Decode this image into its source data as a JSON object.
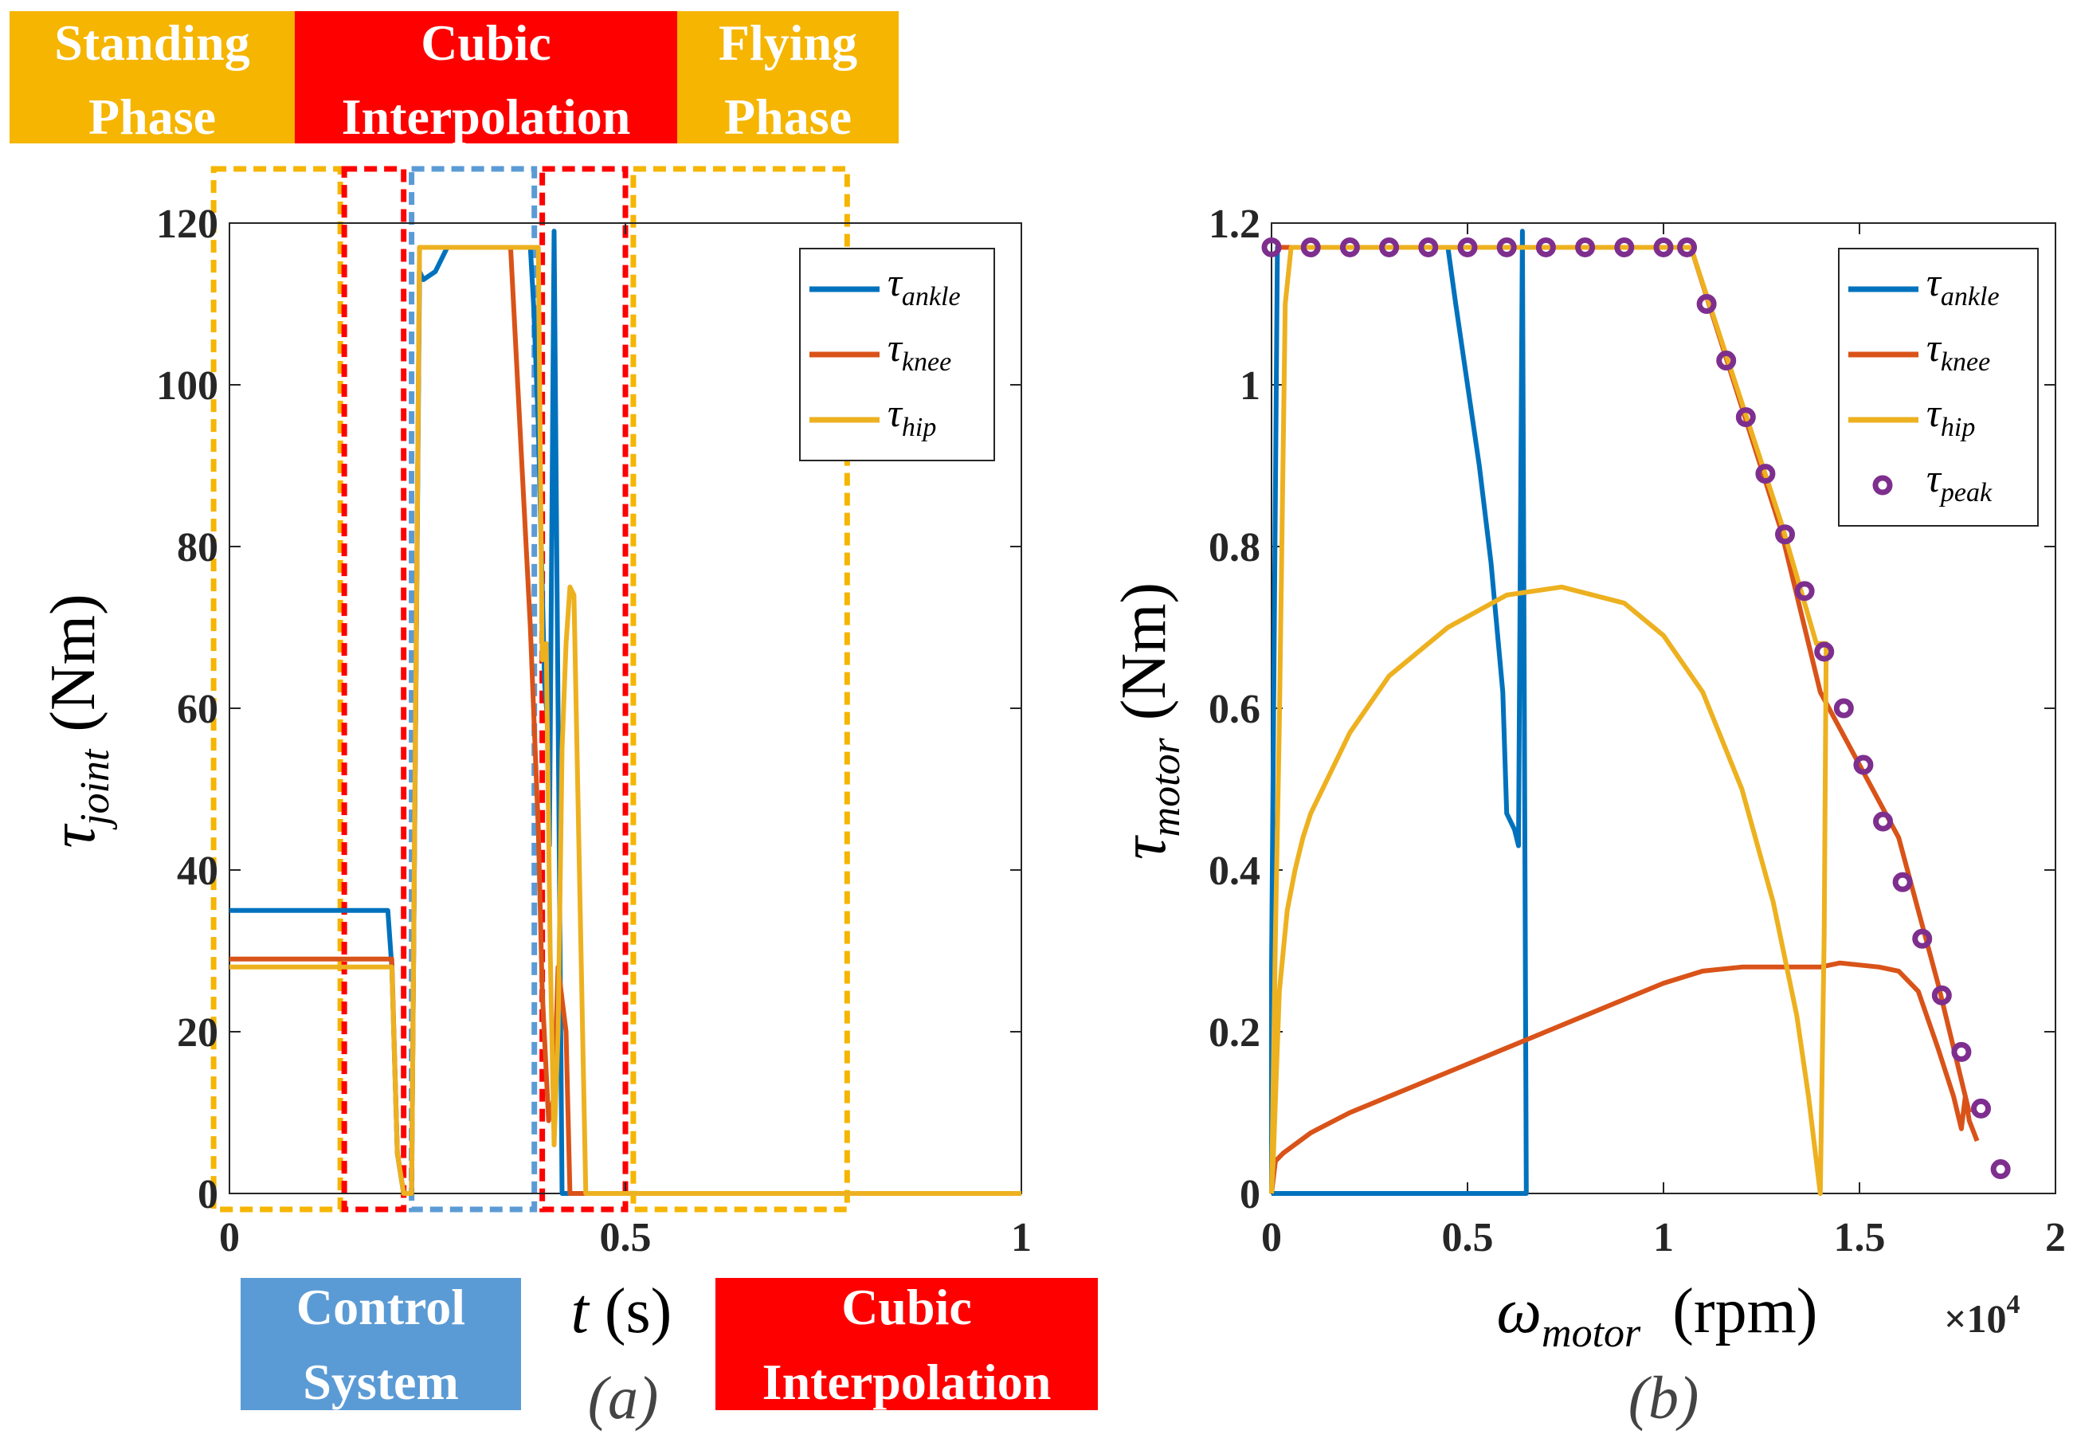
{
  "banners_top": [
    {
      "line1": "Standing",
      "line2": "Phase",
      "color": "#F5B500"
    },
    {
      "line1": "Cubic",
      "line2": "Interpolation",
      "color": "#FF0000"
    },
    {
      "line1": "Flying",
      "line2": "Phase",
      "color": "#F5B500"
    }
  ],
  "banners_bottom": [
    {
      "line1": "Control",
      "line2": "System",
      "color": "#5B9BD5"
    },
    {
      "line1": "Cubic",
      "line2": "Interpolation",
      "color": "#FF0000"
    }
  ],
  "colors": {
    "ankle": "#0072BD",
    "knee": "#D95319",
    "hip": "#EDB120",
    "peak": "#7E2F8E"
  },
  "chart_data": [
    {
      "type": "line",
      "caption": "(a)",
      "ylabel": {
        "symbol": "τ",
        "sub": "joint",
        "unit": "(Nm)"
      },
      "xlabel": {
        "symbol": "t",
        "unit": "(s)"
      },
      "xlim": [
        0,
        1
      ],
      "ylim": [
        0,
        120
      ],
      "xticks": [
        {
          "v": 0,
          "label": "0"
        },
        {
          "v": 0.5,
          "label": "0.5"
        },
        {
          "v": 1,
          "label": "1"
        }
      ],
      "yticks": [
        {
          "v": 0,
          "label": "0"
        },
        {
          "v": 20,
          "label": "20"
        },
        {
          "v": 40,
          "label": "40"
        },
        {
          "v": 60,
          "label": "60"
        },
        {
          "v": 80,
          "label": "80"
        },
        {
          "v": 100,
          "label": "100"
        },
        {
          "v": 120,
          "label": "120"
        }
      ],
      "legend": [
        {
          "symbol": "τ",
          "sub": "ankle",
          "key": "ankle"
        },
        {
          "symbol": "τ",
          "sub": "knee",
          "key": "knee"
        },
        {
          "symbol": "τ",
          "sub": "hip",
          "key": "hip"
        }
      ],
      "phase_boxes": [
        {
          "x0": -0.02,
          "x1": 0.14,
          "color": "#F5B500"
        },
        {
          "x0": 0.145,
          "x1": 0.22,
          "color": "#FF0000"
        },
        {
          "x0": 0.23,
          "x1": 0.385,
          "color": "#5B9BD5"
        },
        {
          "x0": 0.395,
          "x1": 0.5,
          "color": "#FF0000"
        },
        {
          "x0": 0.51,
          "x1": 0.78,
          "color": "#F5B500"
        }
      ],
      "series": [
        {
          "key": "ankle",
          "x": [
            0,
            0.2,
            0.205,
            0.212,
            0.22,
            0.23,
            0.24,
            0.245,
            0.26,
            0.275,
            0.29,
            0.38,
            0.384,
            0.39,
            0.395,
            0.398,
            0.402,
            0.404,
            0.41,
            0.42,
            0.5,
            0.5,
            1
          ],
          "y": [
            35,
            35,
            28,
            5,
            0,
            0,
            114,
            113,
            114,
            117,
            117,
            117,
            110,
            95,
            75,
            63,
            58,
            43,
            119,
            0,
            0,
            0,
            0
          ]
        },
        {
          "key": "knee",
          "x": [
            0,
            0.205,
            0.212,
            0.22,
            0.23,
            0.24,
            0.26,
            0.34,
            0.355,
            0.38,
            0.39,
            0.395,
            0.403,
            0.41,
            0.415,
            0.425,
            0.43,
            0.48,
            1
          ],
          "y": [
            29,
            29,
            5,
            0,
            0,
            117,
            117,
            117,
            117,
            70,
            45,
            25,
            9,
            12,
            28,
            20,
            0,
            0,
            0
          ]
        },
        {
          "key": "hip",
          "x": [
            0,
            0.205,
            0.212,
            0.22,
            0.23,
            0.24,
            0.25,
            0.26,
            0.38,
            0.39,
            0.395,
            0.4,
            0.405,
            0.41,
            0.415,
            0.42,
            0.425,
            0.43,
            0.435,
            0.45,
            0.48,
            0.5,
            1
          ],
          "y": [
            28,
            28,
            5,
            0,
            0,
            117,
            117,
            117,
            117,
            117,
            66,
            68,
            30,
            6,
            20,
            55,
            68,
            75,
            74,
            0,
            0,
            0,
            0
          ]
        }
      ]
    },
    {
      "type": "line",
      "caption": "(b)",
      "ylabel": {
        "symbol": "τ",
        "sub": "motor",
        "unit": "(Nm)"
      },
      "xlabel": {
        "symbol": "ω",
        "sub": "motor",
        "unit": "(rpm)"
      },
      "xmultiplier": "×10",
      "xmultiplier_exp": "4",
      "xlim": [
        0,
        20000
      ],
      "ylim": [
        0,
        1.2
      ],
      "xticks": [
        {
          "v": 0,
          "label": "0"
        },
        {
          "v": 5000,
          "label": "0.5"
        },
        {
          "v": 10000,
          "label": "1"
        },
        {
          "v": 15000,
          "label": "1.5"
        },
        {
          "v": 20000,
          "label": "2"
        }
      ],
      "yticks": [
        {
          "v": 0,
          "label": "0"
        },
        {
          "v": 0.2,
          "label": "0.2"
        },
        {
          "v": 0.4,
          "label": "0.4"
        },
        {
          "v": 0.6,
          "label": "0.6"
        },
        {
          "v": 0.8,
          "label": "0.8"
        },
        {
          "v": 1,
          "label": "1"
        },
        {
          "v": 1.2,
          "label": "1.2"
        }
      ],
      "legend": [
        {
          "symbol": "τ",
          "sub": "ankle",
          "key": "ankle"
        },
        {
          "symbol": "τ",
          "sub": "knee",
          "key": "knee"
        },
        {
          "symbol": "τ",
          "sub": "hip",
          "key": "hip"
        },
        {
          "symbol": "τ",
          "sub": "peak",
          "key": "peak"
        }
      ],
      "series": [
        {
          "key": "ankle",
          "x": [
            0,
            0,
            150,
            200,
            4500,
            4700,
            5000,
            5300,
            5600,
            5900,
            6000,
            6200,
            6300,
            6400,
            6500,
            0
          ],
          "y": [
            0,
            0.28,
            1.17,
            1.17,
            1.17,
            1.1,
            1.0,
            0.9,
            0.78,
            0.62,
            0.47,
            0.45,
            0.43,
            1.19,
            0,
            0
          ]
        },
        {
          "key": "knee",
          "x": [
            0,
            100,
            300,
            1000,
            2000,
            3000,
            4000,
            5000,
            6000,
            7000,
            8000,
            9000,
            10000,
            11000,
            12000,
            13000,
            14000,
            14500,
            15500,
            16000,
            16500,
            17000,
            17400,
            17600,
            17700,
            17800,
            18000
          ],
          "y": [
            0,
            0.04,
            0.05,
            0.075,
            0.1,
            0.12,
            0.14,
            0.16,
            0.18,
            0.2,
            0.22,
            0.24,
            0.26,
            0.275,
            0.28,
            0.28,
            0.28,
            0.285,
            0.28,
            0.275,
            0.25,
            0.18,
            0.12,
            0.08,
            0.12,
            0.09,
            0.065
          ]
        },
        {
          "key": "knee",
          "x": [
            200,
            500,
            10000,
            10700,
            13000,
            14000,
            16000,
            17000,
            17800
          ],
          "y": [
            1.17,
            1.17,
            1.17,
            1.17,
            0.82,
            0.62,
            0.44,
            0.26,
            0.1
          ]
        },
        {
          "key": "hip",
          "x": [
            0,
            50,
            200,
            400,
            600,
            800,
            1000,
            2000,
            3000,
            4500,
            6000,
            7400,
            9000,
            10000,
            11000,
            12000,
            12800,
            13400,
            13700,
            14000,
            14100,
            14150,
            13900,
            13000,
            10700,
            10200,
            500,
            350,
            200,
            100,
            0
          ],
          "y": [
            0,
            0.05,
            0.25,
            0.35,
            0.4,
            0.44,
            0.47,
            0.57,
            0.64,
            0.7,
            0.74,
            0.75,
            0.73,
            0.69,
            0.62,
            0.5,
            0.36,
            0.22,
            0.12,
            0.0,
            0.32,
            0.68,
            0.68,
            0.83,
            1.17,
            1.17,
            1.17,
            1.1,
            0.58,
            0.32,
            0
          ]
        },
        {
          "key": "peak",
          "marker": "o",
          "x": [
            0,
            1000,
            2000,
            3000,
            4000,
            5000,
            6000,
            7000,
            8000,
            9000,
            10000,
            10600,
            11100,
            11600,
            12100,
            12600,
            13100,
            13600,
            14100,
            14600,
            15100,
            15600,
            16100,
            16600,
            17100,
            17600,
            18100,
            18600
          ],
          "y": [
            1.17,
            1.17,
            1.17,
            1.17,
            1.17,
            1.17,
            1.17,
            1.17,
            1.17,
            1.17,
            1.17,
            1.17,
            1.1,
            1.03,
            0.96,
            0.89,
            0.815,
            0.745,
            0.67,
            0.6,
            0.53,
            0.46,
            0.385,
            0.315,
            0.245,
            0.175,
            0.105,
            0.03
          ]
        }
      ]
    }
  ]
}
